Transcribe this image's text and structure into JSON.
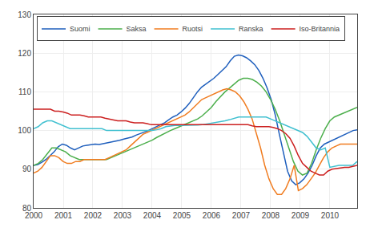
{
  "chart_data": {
    "type": "line",
    "xlim": [
      2000,
      2010.92
    ],
    "ylim": [
      80,
      130
    ],
    "xticks": [
      2000,
      2001,
      2002,
      2003,
      2004,
      2005,
      2006,
      2007,
      2008,
      2009,
      2010
    ],
    "yticks": [
      80,
      90,
      100,
      110,
      120,
      130
    ],
    "grid": true,
    "legend": "upper left",
    "series": [
      {
        "name": "Suomi",
        "color": "#1f5fbd",
        "x": [
          2000,
          2000.1382,
          2000.2765,
          2000.4147,
          2000.5529,
          2000.6911,
          2000.8294,
          2000.9676,
          2001.1058,
          2001.2441,
          2001.3823,
          2001.5205,
          2001.6587,
          2001.797,
          2001.9352,
          2002.0734,
          2002.2116,
          2002.3499,
          2002.4881,
          2002.6263,
          2002.7646,
          2002.9028,
          2003.041,
          2003.1792,
          2003.3175,
          2003.4557,
          2003.5939,
          2003.7322,
          2003.8704,
          2004.0086,
          2004.1468,
          2004.2851,
          2004.4233,
          2004.5615,
          2004.6997,
          2004.838,
          2004.9762,
          2005.1144,
          2005.2527,
          2005.3909,
          2005.5291,
          2005.6673,
          2005.8056,
          2005.9438,
          2006.082,
          2006.2203,
          2006.3585,
          2006.4967,
          2006.6349,
          2006.7732,
          2006.9114,
          2007.0496,
          2007.1878,
          2007.3261,
          2007.4643,
          2007.6025,
          2007.7408,
          2007.879,
          2008.0172,
          2008.1554,
          2008.2937,
          2008.4319,
          2008.5701,
          2008.7084,
          2008.8466,
          2008.9848,
          2009.123,
          2009.2613,
          2009.3995,
          2009.5377,
          2009.6759,
          2009.8142,
          2009.9524,
          2010.0906,
          2010.2289,
          2010.3671,
          2010.5053,
          2010.6435,
          2010.7818,
          2010.92
        ],
        "values": [
          91.0,
          91.2,
          91.8,
          92.5,
          93.5,
          94.5,
          95.8,
          96.5,
          96.2,
          95.5,
          95.0,
          95.5,
          96.0,
          96.2,
          96.3,
          96.5,
          96.4,
          96.6,
          96.8,
          97.0,
          97.2,
          97.5,
          97.8,
          98.0,
          98.3,
          98.8,
          99.2,
          99.5,
          100.0,
          100.5,
          101.0,
          101.5,
          102.0,
          102.8,
          103.5,
          104.0,
          104.8,
          105.8,
          107.0,
          108.5,
          110.0,
          111.2,
          112.0,
          112.8,
          113.5,
          114.5,
          115.5,
          116.5,
          118.0,
          119.2,
          119.5,
          119.3,
          118.8,
          118.0,
          117.0,
          115.5,
          113.5,
          111.0,
          108.0,
          104.0,
          99.0,
          94.0,
          89.5,
          87.0,
          86.0,
          86.5,
          87.5,
          89.0,
          91.0,
          93.5,
          95.5,
          96.5,
          97.0,
          97.5,
          98.0,
          98.5,
          99.0,
          99.5,
          100.0,
          100.2
        ]
      },
      {
        "name": "Saksa",
        "color": "#4caf4c",
        "x": [
          2000,
          2000.1538,
          2000.3076,
          2000.4614,
          2000.6152,
          2000.769,
          2000.9228,
          2001.0766,
          2001.2304,
          2001.3842,
          2001.538,
          2001.6918,
          2001.8456,
          2001.9994,
          2002.1532,
          2002.307,
          2002.4608,
          2002.6146,
          2002.7685,
          2002.9223,
          2003.0761,
          2003.2299,
          2003.3837,
          2003.5375,
          2003.6913,
          2003.8451,
          2003.9989,
          2004.1527,
          2004.3065,
          2004.4603,
          2004.6141,
          2004.7679,
          2004.9217,
          2005.0755,
          2005.2293,
          2005.3831,
          2005.5369,
          2005.6907,
          2005.8445,
          2005.9983,
          2006.1521,
          2006.3059,
          2006.4597,
          2006.6135,
          2006.7673,
          2006.9211,
          2007.0749,
          2007.2287,
          2007.3825,
          2007.5363,
          2007.6901,
          2007.8439,
          2007.9977,
          2008.1515,
          2008.3054,
          2008.4592,
          2008.613,
          2008.7668,
          2008.9206,
          2009.0744,
          2009.2282,
          2009.382,
          2009.5358,
          2009.6896,
          2009.8434,
          2009.9972,
          2010.151,
          2010.3048,
          2010.4586,
          2010.6124,
          2010.7662,
          2010.92
        ],
        "values": [
          91.0,
          91.5,
          92.5,
          94.0,
          95.5,
          95.5,
          95.0,
          94.5,
          93.5,
          93.0,
          92.5,
          92.5,
          92.5,
          92.5,
          92.5,
          92.5,
          92.5,
          93.0,
          93.5,
          94.0,
          94.5,
          95.0,
          95.5,
          96.0,
          96.5,
          97.0,
          97.5,
          98.2,
          98.8,
          99.5,
          100.0,
          100.5,
          101.0,
          101.5,
          102.0,
          102.5,
          103.0,
          103.8,
          104.8,
          106.0,
          107.5,
          108.8,
          110.0,
          111.0,
          112.0,
          113.0,
          113.5,
          113.5,
          113.2,
          112.5,
          111.5,
          110.0,
          108.0,
          105.5,
          102.5,
          99.0,
          95.5,
          92.0,
          89.5,
          88.5,
          89.0,
          91.5,
          95.0,
          98.0,
          100.5,
          102.5,
          103.5,
          104.0,
          104.5,
          105.0,
          105.5,
          106.0
        ]
      },
      {
        "name": "Ruotsi",
        "color": "#f07c20",
        "x": [
          2000,
          2000.1418,
          2000.2836,
          2000.4255,
          2000.5673,
          2000.7091,
          2000.8509,
          2000.9927,
          2001.1345,
          2001.2764,
          2001.4182,
          2001.56,
          2001.7018,
          2001.8436,
          2001.9855,
          2002.1273,
          2002.2691,
          2002.4109,
          2002.5527,
          2002.6945,
          2002.8364,
          2002.9782,
          2003.12,
          2003.2618,
          2003.4036,
          2003.5455,
          2003.6873,
          2003.8291,
          2003.9709,
          2004.1127,
          2004.2545,
          2004.3964,
          2004.5382,
          2004.68,
          2004.8218,
          2004.9636,
          2005.1055,
          2005.2473,
          2005.3891,
          2005.5309,
          2005.6727,
          2005.8145,
          2005.9564,
          2006.0982,
          2006.24,
          2006.3818,
          2006.5236,
          2006.6655,
          2006.8073,
          2006.9491,
          2007.0909,
          2007.2327,
          2007.3745,
          2007.5164,
          2007.6582,
          2007.8,
          2007.9418,
          2008.0836,
          2008.2255,
          2008.3673,
          2008.5091,
          2008.6509,
          2008.7927,
          2008.9345,
          2009.0764,
          2009.2182,
          2009.36,
          2009.5018,
          2009.6436,
          2009.7855,
          2009.9273,
          2010.0691,
          2010.2109,
          2010.3527,
          2010.4945,
          2010.6364,
          2010.7782,
          2010.92
        ],
        "values": [
          89.0,
          89.5,
          90.5,
          92.0,
          93.5,
          93.5,
          93.0,
          92.0,
          91.5,
          91.5,
          92.0,
          92.0,
          92.5,
          92.5,
          92.5,
          92.5,
          92.5,
          92.5,
          93.0,
          93.5,
          94.0,
          94.5,
          95.0,
          96.0,
          97.0,
          98.0,
          99.0,
          99.5,
          100.0,
          100.5,
          101.0,
          101.5,
          102.0,
          102.5,
          103.0,
          103.5,
          104.0,
          104.8,
          105.8,
          107.0,
          108.0,
          108.5,
          109.0,
          109.5,
          110.0,
          110.5,
          110.8,
          110.5,
          110.0,
          109.0,
          107.5,
          105.5,
          103.0,
          99.5,
          95.5,
          91.0,
          87.5,
          85.0,
          83.5,
          83.5,
          85.0,
          87.5,
          91.0,
          84.5,
          85.0,
          86.0,
          87.5,
          89.0,
          91.0,
          93.0,
          94.5,
          95.5,
          96.0,
          96.5,
          96.5,
          96.5,
          96.5,
          96.5
        ]
      },
      {
        "name": "Ranska",
        "color": "#40c0d0",
        "x": [
          2000,
          2000.1538,
          2000.3076,
          2000.4614,
          2000.6152,
          2000.769,
          2000.9228,
          2001.0766,
          2001.2304,
          2001.3842,
          2001.538,
          2001.6918,
          2001.8456,
          2001.9994,
          2002.1532,
          2002.307,
          2002.4608,
          2002.6146,
          2002.7685,
          2002.9223,
          2003.0761,
          2003.2299,
          2003.3837,
          2003.5375,
          2003.6913,
          2003.8451,
          2003.9989,
          2004.1527,
          2004.3065,
          2004.4603,
          2004.6141,
          2004.7679,
          2004.9217,
          2005.0755,
          2005.2293,
          2005.3831,
          2005.5369,
          2005.6907,
          2005.8445,
          2005.9983,
          2006.1521,
          2006.3059,
          2006.4597,
          2006.6135,
          2006.7673,
          2006.9211,
          2007.0749,
          2007.2287,
          2007.3825,
          2007.5363,
          2007.6901,
          2007.8439,
          2007.9977,
          2008.1515,
          2008.3054,
          2008.4592,
          2008.613,
          2008.7668,
          2008.9206,
          2009.0744,
          2009.2282,
          2009.382,
          2009.5358,
          2009.6896,
          2009.8434,
          2009.9972,
          2010.151,
          2010.3048,
          2010.4586,
          2010.6124,
          2010.7662,
          2010.92
        ],
        "values": [
          100.5,
          101.0,
          102.0,
          102.5,
          102.5,
          102.0,
          101.5,
          101.0,
          100.5,
          100.5,
          100.5,
          100.5,
          100.5,
          100.5,
          100.5,
          100.5,
          100.0,
          100.0,
          100.0,
          100.0,
          100.0,
          100.0,
          100.0,
          100.0,
          100.0,
          100.0,
          100.0,
          100.2,
          100.5,
          101.0,
          101.2,
          101.3,
          101.3,
          101.3,
          101.3,
          101.3,
          101.4,
          101.5,
          101.7,
          101.8,
          102.0,
          102.2,
          102.5,
          102.8,
          103.2,
          103.5,
          103.5,
          103.5,
          103.5,
          103.5,
          103.5,
          103.5,
          103.0,
          102.5,
          102.0,
          101.5,
          101.0,
          100.5,
          100.0,
          99.5,
          98.5,
          97.0,
          95.5,
          95.0,
          95.5,
          90.5,
          90.8,
          91.0,
          91.0,
          91.0,
          91.0,
          92.0
        ]
      },
      {
        "name": "Iso-Britannia",
        "color": "#cc2020",
        "x": [
          2000,
          2000.1418,
          2000.2836,
          2000.4255,
          2000.5673,
          2000.7091,
          2000.8509,
          2000.9927,
          2001.1345,
          2001.2764,
          2001.4182,
          2001.56,
          2001.7018,
          2001.8436,
          2001.9855,
          2002.1273,
          2002.2691,
          2002.4109,
          2002.5527,
          2002.6945,
          2002.8364,
          2002.9782,
          2003.12,
          2003.2618,
          2003.4036,
          2003.5455,
          2003.6873,
          2003.8291,
          2003.9709,
          2004.1127,
          2004.2545,
          2004.3964,
          2004.5382,
          2004.68,
          2004.8218,
          2004.9636,
          2005.1055,
          2005.2473,
          2005.3891,
          2005.5309,
          2005.6727,
          2005.8145,
          2005.9564,
          2006.0982,
          2006.24,
          2006.3818,
          2006.5236,
          2006.6655,
          2006.8073,
          2006.9491,
          2007.0909,
          2007.2327,
          2007.3745,
          2007.5164,
          2007.6582,
          2007.8,
          2007.9418,
          2008.0836,
          2008.2255,
          2008.3673,
          2008.5091,
          2008.6509,
          2008.7927,
          2008.9345,
          2009.0764,
          2009.2182,
          2009.36,
          2009.5018,
          2009.6436,
          2009.7855,
          2009.9273,
          2010.0691,
          2010.2109,
          2010.3527,
          2010.4945,
          2010.6364,
          2010.7782,
          2010.92
        ],
        "values": [
          105.5,
          105.5,
          105.5,
          105.5,
          105.5,
          105.0,
          105.0,
          104.8,
          104.5,
          104.0,
          104.0,
          104.0,
          103.8,
          103.5,
          103.5,
          103.5,
          103.5,
          103.2,
          103.0,
          102.8,
          102.5,
          102.5,
          102.5,
          102.2,
          102.0,
          102.0,
          102.0,
          101.8,
          101.5,
          101.5,
          101.5,
          101.5,
          101.5,
          101.5,
          101.5,
          101.5,
          101.5,
          101.5,
          101.5,
          101.5,
          101.5,
          101.5,
          101.5,
          101.5,
          101.5,
          101.5,
          101.5,
          101.5,
          101.5,
          101.5,
          101.5,
          101.5,
          101.2,
          101.0,
          101.0,
          101.0,
          101.0,
          100.8,
          100.5,
          100.0,
          99.2,
          98.0,
          96.0,
          93.5,
          91.5,
          90.5,
          89.5,
          89.0,
          88.5,
          88.5,
          89.5,
          90.0,
          90.2,
          90.3,
          90.5,
          90.5,
          90.7,
          91.0
        ]
      }
    ]
  }
}
